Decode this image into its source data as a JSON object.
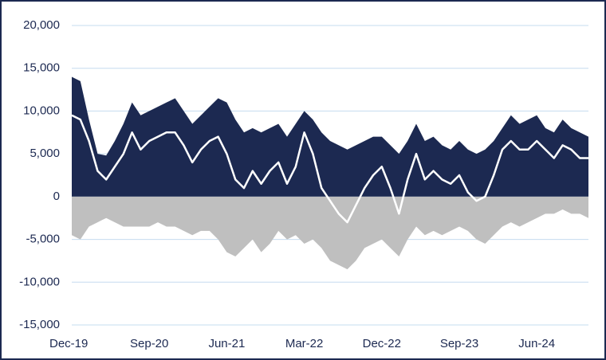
{
  "chart_data": {
    "type": "area",
    "categories": [
      "Dec-19",
      null,
      null,
      null,
      null,
      null,
      null,
      null,
      null,
      "Sep-20",
      null,
      null,
      null,
      null,
      null,
      null,
      null,
      null,
      "Jun-21",
      null,
      null,
      null,
      null,
      null,
      null,
      null,
      null,
      "Mar-22",
      null,
      null,
      null,
      null,
      null,
      null,
      null,
      null,
      "Dec-22",
      null,
      null,
      null,
      null,
      null,
      null,
      null,
      null,
      "Sep-23",
      null,
      null,
      null,
      null,
      null,
      null,
      null,
      null,
      "Jun-24",
      null,
      null,
      null,
      null,
      null,
      null
    ],
    "series": [
      {
        "color": "#1c2951",
        "values": [
          14000,
          13500,
          9000,
          5000,
          4800,
          6500,
          8500,
          11000,
          9500,
          10000,
          10500,
          11000,
          11500,
          10000,
          8500,
          9500,
          10500,
          11500,
          11000,
          9000,
          7500,
          8000,
          7500,
          8000,
          8500,
          7000,
          8500,
          10000,
          9000,
          7500,
          6500,
          6000,
          5500,
          6000,
          6500,
          7000,
          7000,
          6000,
          5000,
          6500,
          8500,
          6500,
          7000,
          6000,
          5500,
          6500,
          5500,
          5000,
          5500,
          6500,
          8000,
          9500,
          8500,
          9000,
          9500,
          8000,
          7500,
          9000,
          8000,
          7500,
          7000
        ]
      },
      {
        "color": "#bfbfbf",
        "values": [
          -4500,
          -5000,
          -3500,
          -3000,
          -2500,
          -3000,
          -3500,
          -3500,
          -3500,
          -3500,
          -3000,
          -3500,
          -3500,
          -4000,
          -4500,
          -4000,
          -4000,
          -5000,
          -6500,
          -7000,
          -6000,
          -5000,
          -6500,
          -5500,
          -4000,
          -5000,
          -4500,
          -5500,
          -5000,
          -6000,
          -7500,
          -8000,
          -8500,
          -7500,
          -6000,
          -5500,
          -5000,
          -6000,
          -7000,
          -5000,
          -3500,
          -4500,
          -4000,
          -4500,
          -4000,
          -3500,
          -4000,
          -5000,
          -5500,
          -4500,
          -3500,
          -3000,
          -3500,
          -3000,
          -2500,
          -2000,
          -2000,
          -1500,
          -2000,
          -2000,
          -2500
        ]
      },
      {
        "type": "line",
        "color": "#ffffff",
        "values": [
          9500,
          9000,
          6500,
          3000,
          2000,
          3500,
          5000,
          7500,
          5500,
          6500,
          7000,
          7500,
          7500,
          6000,
          4000,
          5500,
          6500,
          7000,
          5000,
          2000,
          1000,
          3000,
          1500,
          3000,
          4000,
          1500,
          3500,
          7500,
          5000,
          1000,
          -500,
          -2000,
          -3000,
          -1000,
          1000,
          2500,
          3500,
          1000,
          -2000,
          2000,
          5000,
          2000,
          3000,
          2000,
          1500,
          2500,
          500,
          -500,
          0,
          2500,
          5500,
          6500,
          5500,
          5500,
          6500,
          5500,
          4500,
          6000,
          5500,
          4500,
          4500
        ]
      }
    ],
    "ylim": [
      -15000,
      20000
    ],
    "yticks": [
      {
        "value": -15000,
        "label": "-15,000"
      },
      {
        "value": -10000,
        "label": "-10,000"
      },
      {
        "value": -5000,
        "label": "-5,000"
      },
      0,
      {
        "value": 5000,
        "label": "5,000"
      },
      {
        "value": 10000,
        "label": "10,000"
      },
      {
        "value": 15000,
        "label": "15,000"
      },
      {
        "value": 20000,
        "label": "20,000"
      }
    ],
    "grid": true
  }
}
